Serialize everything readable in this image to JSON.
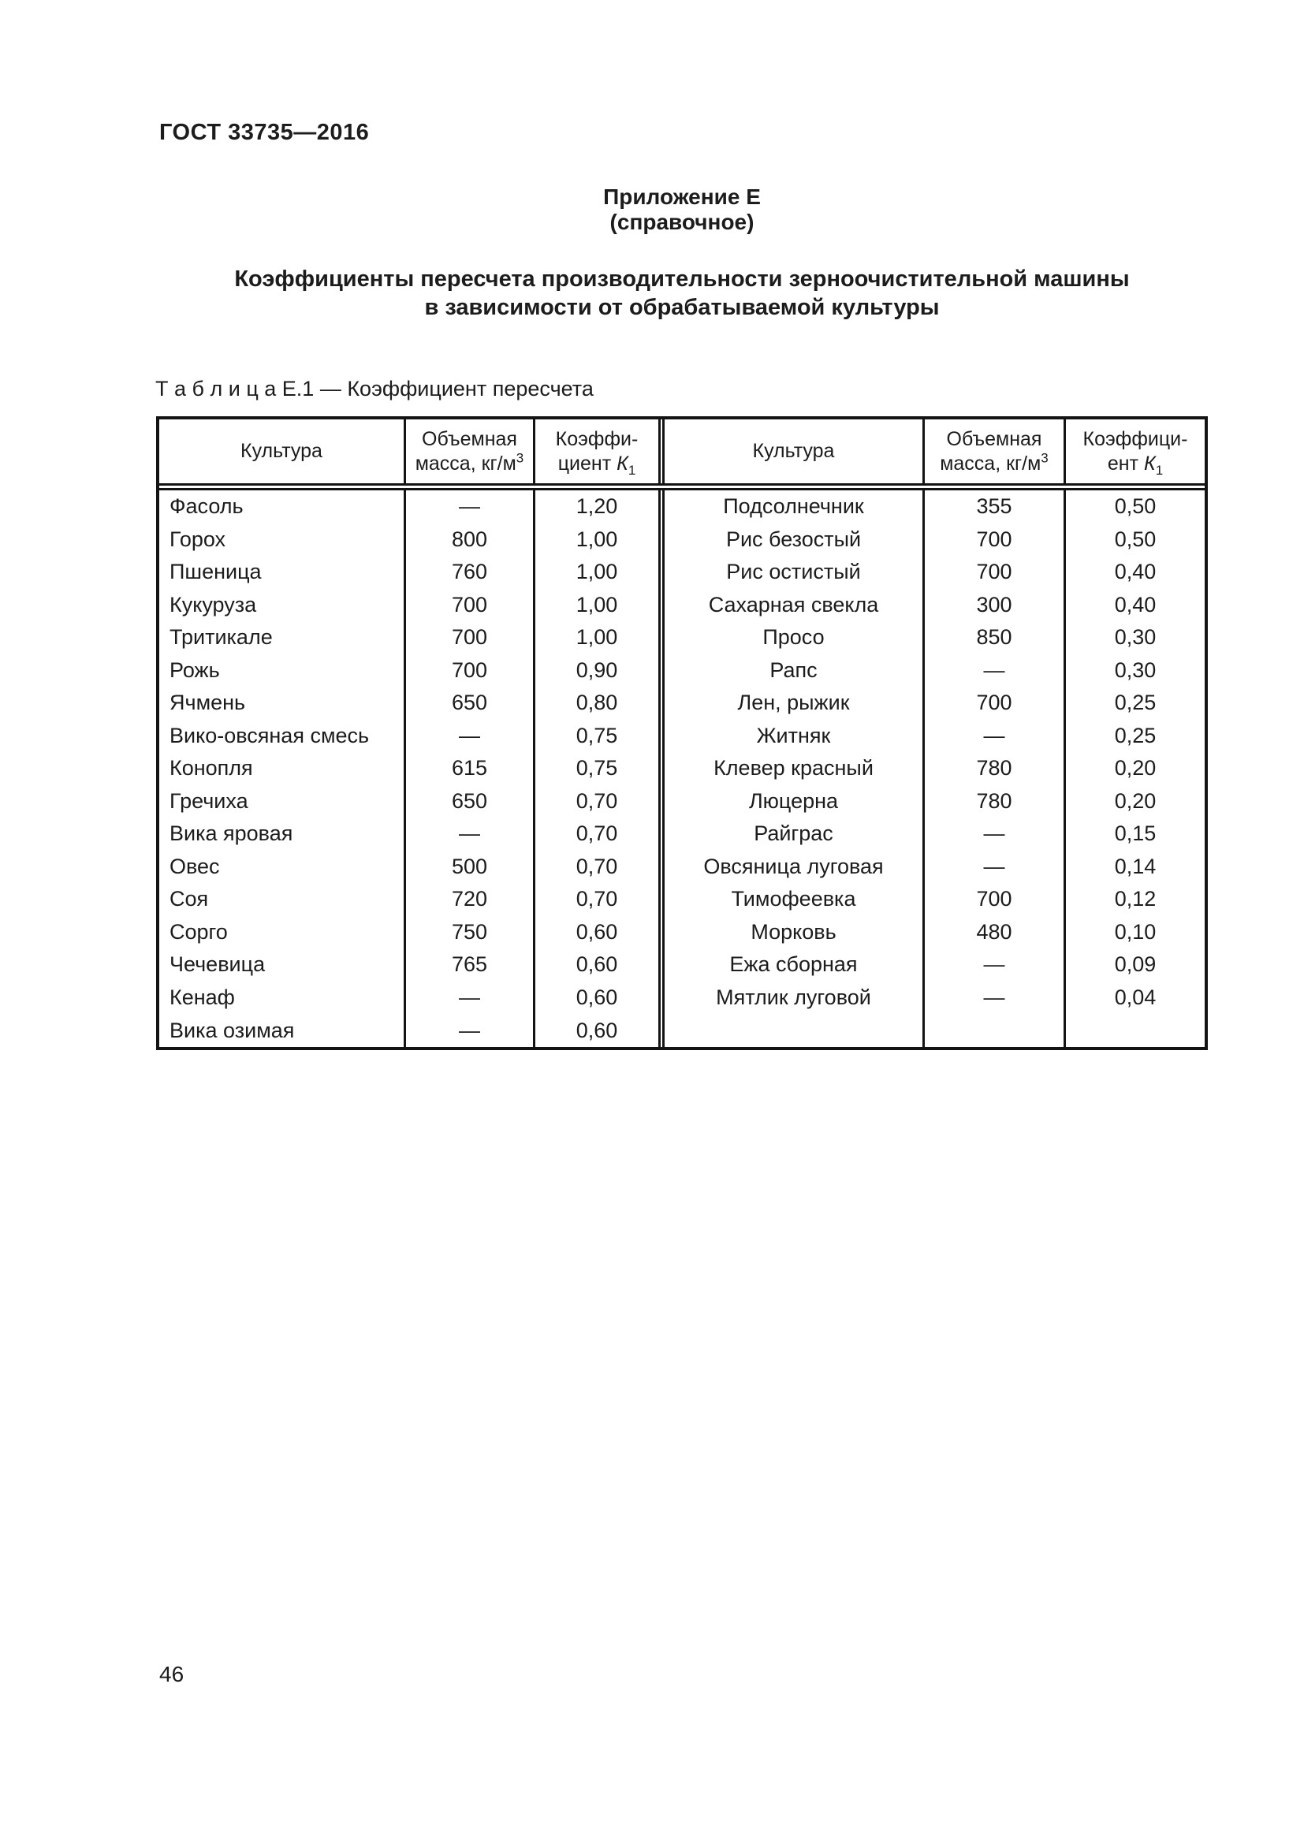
{
  "page": {
    "doc_number": "ГОСТ 33735—2016",
    "appendix_title": "Приложение Е",
    "appendix_subtitle": "(справочное)",
    "main_title_line1": "Коэффициенты пересчета производительности зерноочистительной машины",
    "main_title_line2": "в зависимости от обрабатываемой культуры",
    "table_caption": "Т а б л и ц а  Е.1 — Коэффициент пересчета",
    "page_number": "46"
  },
  "table": {
    "headers": {
      "culture": "Культура",
      "mass_line1": "Объемная",
      "mass_line2": "масса, кг/м",
      "mass_sup": "3",
      "coef_left_line1": "Коэффи-",
      "coef_left_line2": "циент ",
      "coef_right_line1": "Коэффици-",
      "coef_right_line2": "ент ",
      "coef_symbol": "К",
      "coef_sub": "1"
    },
    "left_rows": [
      {
        "culture": "Фасоль",
        "mass": "—",
        "coef": "1,20"
      },
      {
        "culture": "Горох",
        "mass": "800",
        "coef": "1,00"
      },
      {
        "culture": "Пшеница",
        "mass": "760",
        "coef": "1,00"
      },
      {
        "culture": "Кукуруза",
        "mass": "700",
        "coef": "1,00"
      },
      {
        "culture": "Тритикале",
        "mass": "700",
        "coef": "1,00"
      },
      {
        "culture": "Рожь",
        "mass": "700",
        "coef": "0,90"
      },
      {
        "culture": "Ячмень",
        "mass": "650",
        "coef": "0,80"
      },
      {
        "culture": "Вико-овсяная смесь",
        "mass": "—",
        "coef": "0,75"
      },
      {
        "culture": "Конопля",
        "mass": "615",
        "coef": "0,75"
      },
      {
        "culture": "Гречиха",
        "mass": "650",
        "coef": "0,70"
      },
      {
        "culture": "Вика яровая",
        "mass": "—",
        "coef": "0,70"
      },
      {
        "culture": "Овес",
        "mass": "500",
        "coef": "0,70"
      },
      {
        "culture": "Соя",
        "mass": "720",
        "coef": "0,70"
      },
      {
        "culture": "Сорго",
        "mass": "750",
        "coef": "0,60"
      },
      {
        "culture": "Чечевица",
        "mass": "765",
        "coef": "0,60"
      },
      {
        "culture": "Кенаф",
        "mass": "—",
        "coef": "0,60"
      },
      {
        "culture": "Вика озимая",
        "mass": "—",
        "coef": "0,60"
      }
    ],
    "right_rows": [
      {
        "culture": "Подсолнечник",
        "mass": "355",
        "coef": "0,50"
      },
      {
        "culture": "Рис безостый",
        "mass": "700",
        "coef": "0,50"
      },
      {
        "culture": "Рис остистый",
        "mass": "700",
        "coef": "0,40"
      },
      {
        "culture": "Сахарная свекла",
        "mass": "300",
        "coef": "0,40"
      },
      {
        "culture": "Просо",
        "mass": "850",
        "coef": "0,30"
      },
      {
        "culture": "Рапс",
        "mass": "—",
        "coef": "0,30"
      },
      {
        "culture": "Лен, рыжик",
        "mass": "700",
        "coef": "0,25"
      },
      {
        "culture": "Житняк",
        "mass": "—",
        "coef": "0,25"
      },
      {
        "culture": "Клевер красный",
        "mass": "780",
        "coef": "0,20"
      },
      {
        "culture": "Люцерна",
        "mass": "780",
        "coef": "0,20"
      },
      {
        "culture": "Райграс",
        "mass": "—",
        "coef": "0,15"
      },
      {
        "culture": "Овсяница луговая",
        "mass": "—",
        "coef": "0,14"
      },
      {
        "culture": "Тимофеевка",
        "mass": "700",
        "coef": "0,12"
      },
      {
        "culture": "Морковь",
        "mass": "480",
        "coef": "0,10"
      },
      {
        "culture": "Ежа сборная",
        "mass": "—",
        "coef": "0,09"
      },
      {
        "culture": "Мятлик луговой",
        "mass": "—",
        "coef": "0,04"
      }
    ]
  }
}
